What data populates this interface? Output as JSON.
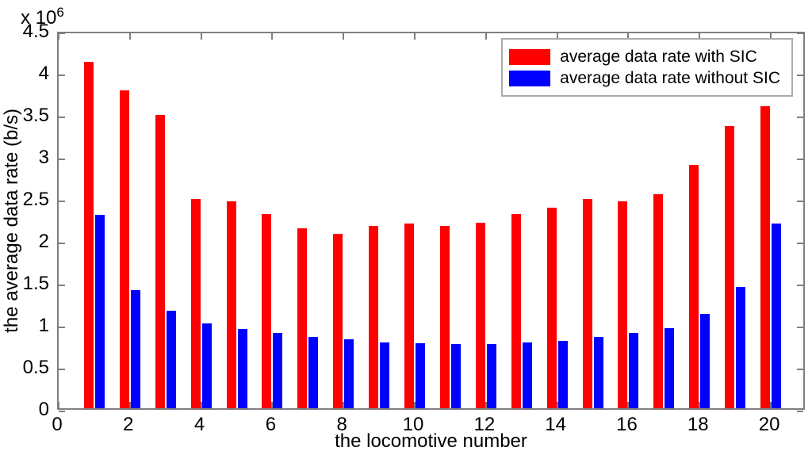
{
  "figure": {
    "background": "#ffffff",
    "axis_color": "#7f7f7f",
    "text_color": "#000000"
  },
  "chart_data": {
    "type": "bar",
    "title": "",
    "xlabel": "the locomotive number",
    "ylabel": "the average data rate (b/s)",
    "y_multiplier": {
      "base": "x 10",
      "exponent": "6"
    },
    "categories": [
      1,
      2,
      3,
      4,
      5,
      6,
      7,
      8,
      9,
      10,
      11,
      12,
      13,
      14,
      15,
      16,
      17,
      18,
      19,
      20
    ],
    "series": [
      {
        "name": "average data rate with SIC",
        "color": "#ff0000",
        "values": [
          4120000,
          3780000,
          3490000,
          2490000,
          2460000,
          2310000,
          2140000,
          2080000,
          2170000,
          2200000,
          2170000,
          2210000,
          2310000,
          2390000,
          2490000,
          2460000,
          2550000,
          2900000,
          3360000,
          3590000
        ]
      },
      {
        "name": "average data rate without SIC",
        "color": "#0000ff",
        "values": [
          2300000,
          1410000,
          1160000,
          1010000,
          940000,
          900000,
          850000,
          820000,
          780000,
          770000,
          760000,
          760000,
          780000,
          800000,
          850000,
          900000,
          950000,
          1120000,
          1440000,
          2200000
        ]
      }
    ],
    "xlim": [
      0,
      21
    ],
    "ylim": [
      0,
      4500000
    ],
    "xticks": [
      0,
      2,
      4,
      6,
      8,
      10,
      12,
      14,
      16,
      18,
      20
    ],
    "yticks": [
      0,
      500000,
      1000000,
      1500000,
      2000000,
      2500000,
      3000000,
      3500000,
      4000000,
      4500000
    ],
    "ytick_labels": [
      "0",
      "0.5",
      "1",
      "1.5",
      "2",
      "2.5",
      "3",
      "3.5",
      "4",
      "4.5"
    ],
    "grid": false,
    "legend_position": "top-right"
  }
}
